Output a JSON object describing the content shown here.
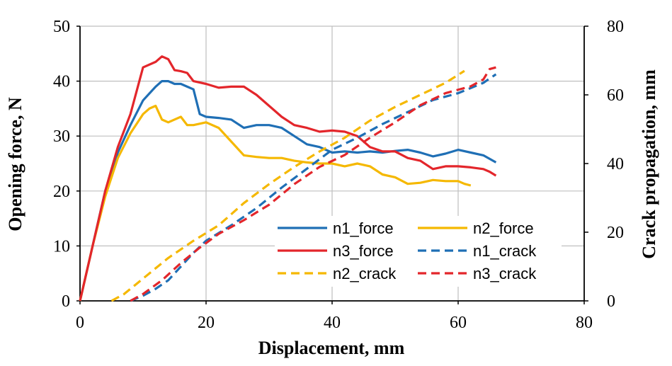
{
  "chart_data": {
    "type": "line",
    "xlabel": "Displacement, mm",
    "ylabel": "Opening force, N",
    "y2label": "Crack propagation, mm",
    "xlim": [
      0,
      80
    ],
    "ylim": [
      0,
      50
    ],
    "y2lim": [
      0,
      80
    ],
    "x_ticks": [
      "0",
      "20",
      "40",
      "60",
      "80"
    ],
    "y_ticks": [
      "0",
      "10",
      "20",
      "30",
      "40",
      "50"
    ],
    "y2_ticks": [
      "0",
      "20",
      "40",
      "60",
      "80"
    ],
    "grid": true,
    "legend_position": "bottom-right",
    "series": [
      {
        "name": "n1_force",
        "axis": "left",
        "color": "#1F6FB5",
        "dash": "solid",
        "points": [
          [
            0,
            0
          ],
          [
            2,
            10
          ],
          [
            4,
            20
          ],
          [
            6,
            27
          ],
          [
            8,
            32
          ],
          [
            10,
            36.5
          ],
          [
            12,
            39
          ],
          [
            13,
            40
          ],
          [
            14,
            40
          ],
          [
            15,
            39.5
          ],
          [
            16,
            39.5
          ],
          [
            17,
            39
          ],
          [
            18,
            38.5
          ],
          [
            19,
            34
          ],
          [
            20,
            33.5
          ],
          [
            22,
            33.3
          ],
          [
            24,
            33
          ],
          [
            26,
            31.5
          ],
          [
            28,
            32
          ],
          [
            30,
            32
          ],
          [
            32,
            31.5
          ],
          [
            34,
            30
          ],
          [
            36,
            28.5
          ],
          [
            38,
            28
          ],
          [
            40,
            27
          ],
          [
            42,
            27.2
          ],
          [
            44,
            27
          ],
          [
            46,
            27.2
          ],
          [
            48,
            27
          ],
          [
            50,
            27.3
          ],
          [
            52,
            27.5
          ],
          [
            54,
            27
          ],
          [
            56,
            26.3
          ],
          [
            58,
            26.8
          ],
          [
            60,
            27.5
          ],
          [
            62,
            27
          ],
          [
            64,
            26.5
          ],
          [
            66,
            25.2
          ]
        ]
      },
      {
        "name": "n2_force",
        "axis": "left",
        "color": "#F5B800",
        "dash": "solid",
        "points": [
          [
            0,
            0
          ],
          [
            2,
            10
          ],
          [
            4,
            19
          ],
          [
            6,
            26
          ],
          [
            8,
            30.5
          ],
          [
            10,
            34
          ],
          [
            11,
            35
          ],
          [
            12,
            35.5
          ],
          [
            13,
            33
          ],
          [
            14,
            32.5
          ],
          [
            16,
            33.5
          ],
          [
            17,
            32
          ],
          [
            18,
            32
          ],
          [
            20,
            32.5
          ],
          [
            22,
            31.5
          ],
          [
            24,
            29
          ],
          [
            26,
            26.5
          ],
          [
            28,
            26.2
          ],
          [
            30,
            26
          ],
          [
            32,
            26
          ],
          [
            34,
            25.5
          ],
          [
            36,
            25.2
          ],
          [
            38,
            25
          ],
          [
            40,
            25
          ],
          [
            42,
            24.5
          ],
          [
            44,
            25
          ],
          [
            46,
            24.5
          ],
          [
            48,
            23
          ],
          [
            50,
            22.5
          ],
          [
            52,
            21.3
          ],
          [
            54,
            21.5
          ],
          [
            56,
            22
          ],
          [
            58,
            21.8
          ],
          [
            60,
            21.8
          ],
          [
            61,
            21.3
          ],
          [
            62,
            21
          ]
        ]
      },
      {
        "name": "n3_force",
        "axis": "left",
        "color": "#E3262B",
        "dash": "solid",
        "points": [
          [
            0,
            0
          ],
          [
            2,
            10
          ],
          [
            4,
            20
          ],
          [
            6,
            28
          ],
          [
            8,
            34
          ],
          [
            10,
            42.5
          ],
          [
            12,
            43.5
          ],
          [
            13,
            44.5
          ],
          [
            14,
            44
          ],
          [
            15,
            42
          ],
          [
            16,
            41.8
          ],
          [
            17,
            41.5
          ],
          [
            18,
            40
          ],
          [
            20,
            39.5
          ],
          [
            22,
            38.8
          ],
          [
            24,
            39
          ],
          [
            26,
            39
          ],
          [
            28,
            37.5
          ],
          [
            30,
            35.5
          ],
          [
            32,
            33.5
          ],
          [
            34,
            32
          ],
          [
            36,
            31.5
          ],
          [
            38,
            30.8
          ],
          [
            40,
            31
          ],
          [
            42,
            30.8
          ],
          [
            44,
            30
          ],
          [
            46,
            28
          ],
          [
            48,
            27.2
          ],
          [
            50,
            27.2
          ],
          [
            52,
            26
          ],
          [
            54,
            25.5
          ],
          [
            56,
            24
          ],
          [
            58,
            24.5
          ],
          [
            60,
            24.5
          ],
          [
            62,
            24.3
          ],
          [
            64,
            24
          ],
          [
            65,
            23.5
          ],
          [
            66,
            22.8
          ]
        ]
      },
      {
        "name": "n1_crack",
        "axis": "right",
        "color": "#1F6FB5",
        "dash": "dashed",
        "points": [
          [
            8,
            0
          ],
          [
            10,
            1.5
          ],
          [
            12,
            3.5
          ],
          [
            14,
            6
          ],
          [
            16,
            10
          ],
          [
            18,
            14
          ],
          [
            20,
            17.5
          ],
          [
            24,
            22
          ],
          [
            28,
            27
          ],
          [
            32,
            33
          ],
          [
            36,
            38.5
          ],
          [
            40,
            44
          ],
          [
            44,
            47.5
          ],
          [
            48,
            51.5
          ],
          [
            52,
            55
          ],
          [
            56,
            58.5
          ],
          [
            60,
            60.5
          ],
          [
            64,
            63.5
          ],
          [
            66,
            66
          ]
        ]
      },
      {
        "name": "n2_crack",
        "axis": "right",
        "color": "#F5B800",
        "dash": "dashed",
        "points": [
          [
            5,
            0
          ],
          [
            7,
            2
          ],
          [
            10,
            6.5
          ],
          [
            14,
            12.5
          ],
          [
            18,
            17.5
          ],
          [
            22,
            22
          ],
          [
            26,
            28.5
          ],
          [
            30,
            34
          ],
          [
            34,
            39
          ],
          [
            38,
            43.5
          ],
          [
            42,
            47.5
          ],
          [
            46,
            52.5
          ],
          [
            50,
            56.5
          ],
          [
            54,
            60
          ],
          [
            58,
            63.5
          ],
          [
            61,
            67
          ]
        ]
      },
      {
        "name": "n3_crack",
        "axis": "right",
        "color": "#E3262B",
        "dash": "dashed",
        "points": [
          [
            8,
            0
          ],
          [
            10,
            2
          ],
          [
            13,
            6
          ],
          [
            16,
            11
          ],
          [
            19,
            15.5
          ],
          [
            22,
            19.5
          ],
          [
            26,
            23.5
          ],
          [
            30,
            28
          ],
          [
            34,
            34
          ],
          [
            38,
            39
          ],
          [
            42,
            42.5
          ],
          [
            46,
            47.5
          ],
          [
            50,
            52
          ],
          [
            54,
            57
          ],
          [
            58,
            60.5
          ],
          [
            62,
            62.5
          ],
          [
            64,
            64.5
          ],
          [
            65,
            67.5
          ],
          [
            66,
            68
          ]
        ]
      }
    ]
  }
}
